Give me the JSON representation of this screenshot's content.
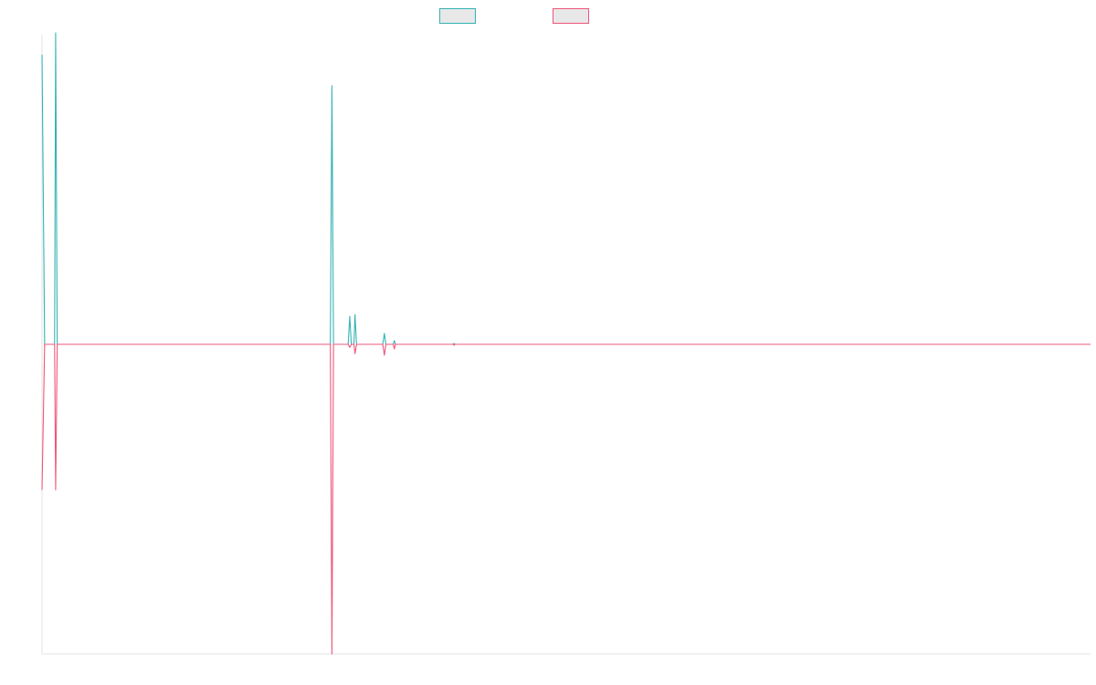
{
  "chart_data": {
    "type": "line",
    "title": "",
    "xlabel": "",
    "ylabel": "",
    "grid": false,
    "legend_placement": "top-center",
    "xlim": [
      0,
      100
    ],
    "ylim": [
      -1.0,
      1.0
    ],
    "series": [
      {
        "color": "#36b3b3",
        "values": [
          [
            0,
            0.93
          ],
          [
            0.25,
            0.0
          ],
          [
            0.6,
            0.0
          ],
          [
            1.2,
            0.0
          ],
          [
            1.3,
            1.0
          ],
          [
            1.45,
            0.0
          ],
          [
            1.8,
            0.0
          ],
          [
            27.5,
            0.0
          ],
          [
            27.65,
            0.83
          ],
          [
            27.8,
            0.0
          ],
          [
            28.2,
            0.0
          ],
          [
            29.2,
            0.0
          ],
          [
            29.35,
            0.09
          ],
          [
            29.5,
            0.0
          ],
          [
            29.75,
            0.0
          ],
          [
            29.85,
            0.095
          ],
          [
            30.0,
            0.0
          ],
          [
            32.5,
            0.0
          ],
          [
            32.65,
            0.035
          ],
          [
            32.8,
            0.0
          ],
          [
            33.5,
            0.0
          ],
          [
            33.6,
            0.012
          ],
          [
            33.7,
            0.0
          ],
          [
            39.2,
            0.0
          ],
          [
            39.3,
            0.003
          ],
          [
            39.4,
            0.0
          ],
          [
            100,
            0.0
          ]
        ]
      },
      {
        "color": "#f0567a",
        "values": [
          [
            0,
            -0.47
          ],
          [
            0.25,
            0.0
          ],
          [
            0.6,
            0.0
          ],
          [
            1.2,
            0.0
          ],
          [
            1.3,
            -0.47
          ],
          [
            1.45,
            0.0
          ],
          [
            1.8,
            0.0
          ],
          [
            27.5,
            0.0
          ],
          [
            27.65,
            -1.0
          ],
          [
            27.8,
            0.0
          ],
          [
            28.2,
            0.0
          ],
          [
            29.2,
            0.0
          ],
          [
            29.35,
            -0.01
          ],
          [
            29.5,
            0.0
          ],
          [
            29.75,
            0.0
          ],
          [
            29.85,
            -0.03
          ],
          [
            30.0,
            0.0
          ],
          [
            32.5,
            0.0
          ],
          [
            32.65,
            -0.035
          ],
          [
            32.8,
            0.0
          ],
          [
            33.5,
            0.0
          ],
          [
            33.6,
            -0.015
          ],
          [
            33.7,
            0.0
          ],
          [
            39.2,
            0.0
          ],
          [
            39.3,
            -0.003
          ],
          [
            39.4,
            0.0
          ],
          [
            100,
            0.0
          ]
        ]
      }
    ]
  }
}
